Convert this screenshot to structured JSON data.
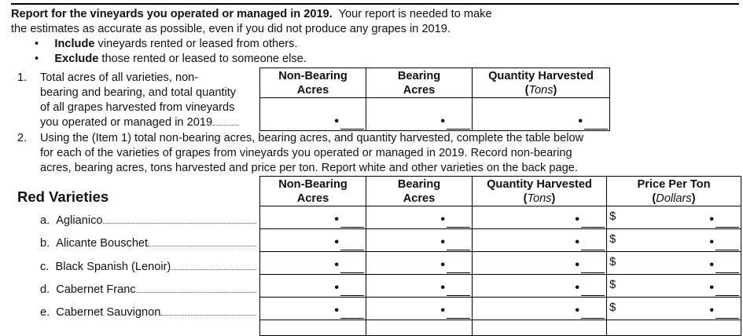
{
  "intro": {
    "bold": "Report for the vineyards you operated or managed in 2019.",
    "rest": "Your report is needed to make",
    "line2": "the estimates as accurate as possible, even if you did not produce any grapes in 2019."
  },
  "bullets": [
    {
      "bold": "Include",
      "rest": "vineyards rented or leased from others."
    },
    {
      "bold": "Exclude",
      "rest": "those rented or leased to someone else."
    }
  ],
  "item1": {
    "number": "1.",
    "lines": [
      "Total acres of all varieties, non-",
      "bearing and bearing, and total quantity",
      "of all grapes harvested from vineyards",
      "you operated or managed in 2019"
    ],
    "columns": [
      {
        "title": "Non-Bearing",
        "sub": "Acres"
      },
      {
        "title": "Bearing",
        "sub": "Acres"
      },
      {
        "title": "Quantity Harvested",
        "sub": "Tons"
      }
    ]
  },
  "item2": {
    "number": "2.",
    "lines": [
      "Using the (Item 1) total non-bearing acres, bearing acres, and quantity harvested, complete the table below",
      "for each of the varieties of grapes from vineyards you operated or managed in 2019. Record non-bearing",
      "acres, bearing acres, tons harvested and price per ton.  Report white and other varieties on the back page."
    ]
  },
  "red": {
    "heading": "Red Varieties",
    "columns": [
      {
        "title": "Non-Bearing",
        "sub": "Acres"
      },
      {
        "title": "Bearing",
        "sub": "Acres"
      },
      {
        "title": "Quantity Harvested",
        "sub": "Tons"
      },
      {
        "title": "Price Per Ton",
        "sub": "Dollars"
      }
    ],
    "currency": "$",
    "decimal": "•",
    "rows": [
      {
        "letter": "a.",
        "name": "Aglianico"
      },
      {
        "letter": "b.",
        "name": "Alicante Bouschet"
      },
      {
        "letter": "c.",
        "name": "Black Spanish (Lenoir)"
      },
      {
        "letter": "d.",
        "name": "Cabernet Franc"
      },
      {
        "letter": "e.",
        "name": "Cabernet Sauvignon"
      }
    ]
  }
}
